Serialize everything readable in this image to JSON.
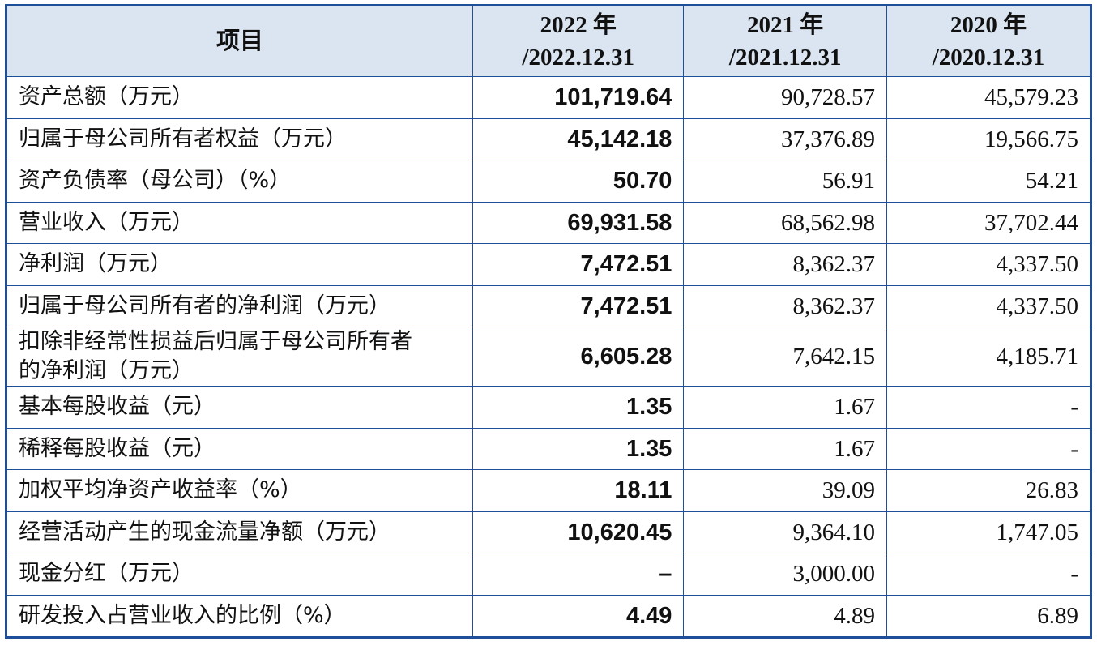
{
  "table": {
    "header": [
      [
        "项目"
      ],
      [
        "2022 年",
        "/2022.12.31"
      ],
      [
        "2021 年",
        "/2021.12.31"
      ],
      [
        "2020 年",
        "/2020.12.31"
      ]
    ],
    "rows": [
      [
        "资产总额（万元）",
        "101,719.64",
        "90,728.57",
        "45,579.23"
      ],
      [
        "归属于母公司所有者权益（万元）",
        "45,142.18",
        "37,376.89",
        "19,566.75"
      ],
      [
        "资产负债率（母公司）（%）",
        "50.70",
        "56.91",
        "54.21"
      ],
      [
        "营业收入（万元）",
        "69,931.58",
        "68,562.98",
        "37,702.44"
      ],
      [
        "净利润（万元）",
        "7,472.51",
        "8,362.37",
        "4,337.50"
      ],
      [
        "归属于母公司所有者的净利润（万元）",
        "7,472.51",
        "8,362.37",
        "4,337.50"
      ],
      [
        "扣除非经常性损益后归属于母公司所有者的净利润（万元）",
        "6,605.28",
        "7,642.15",
        "4,185.71"
      ],
      [
        "基本每股收益（元）",
        "1.35",
        "1.67",
        "-"
      ],
      [
        "稀释每股收益（元）",
        "1.35",
        "1.67",
        "-"
      ],
      [
        "加权平均净资产收益率（%）",
        "18.11",
        "39.09",
        "26.83"
      ],
      [
        "经营活动产生的现金流量净额（万元）",
        "10,620.45",
        "9,364.10",
        "1,747.05"
      ],
      [
        "现金分红（万元）",
        "–",
        "3,000.00",
        "-"
      ],
      [
        "研发投入占营业收入的比例（%）",
        "4.49",
        "4.89",
        "6.89"
      ]
    ]
  }
}
